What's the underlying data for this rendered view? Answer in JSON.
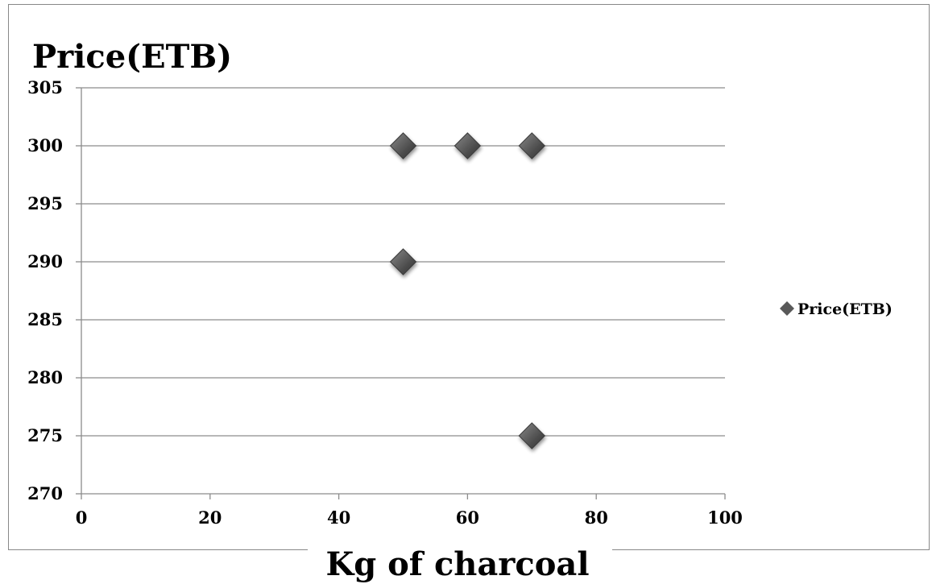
{
  "chart_data": {
    "type": "scatter",
    "title": "",
    "ylabel": "Price(ETB)",
    "xlabel": "Kg of charcoal",
    "xlim": [
      0,
      100
    ],
    "ylim": [
      270,
      305
    ],
    "x_ticks": [
      0,
      20,
      40,
      60,
      80,
      100
    ],
    "y_ticks": [
      270,
      275,
      280,
      285,
      290,
      295,
      300,
      305
    ],
    "grid": "horizontal",
    "legend_position": "right",
    "marker": "diamond",
    "series": [
      {
        "name": "Price(ETB)",
        "color": "#595959",
        "points": [
          {
            "x": 50,
            "y": 300
          },
          {
            "x": 60,
            "y": 300
          },
          {
            "x": 70,
            "y": 300
          },
          {
            "x": 50,
            "y": 290
          },
          {
            "x": 70,
            "y": 275
          }
        ]
      }
    ]
  }
}
